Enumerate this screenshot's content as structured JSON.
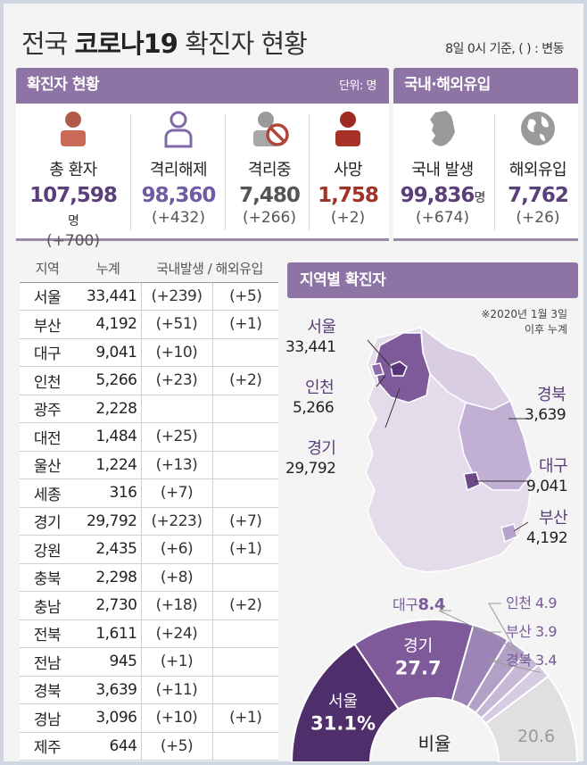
{
  "title_prefix": "전국",
  "title_bold": "코로나19",
  "title_suffix": "확진자 현황",
  "date_note": "8일 0시 기준, ( ) : 변동",
  "colors": {
    "accent": "#8e73a5",
    "dark_purple": "#5a3478",
    "death_red": "#a13228"
  },
  "confirmed_panel": {
    "title": "확진자 현황",
    "unit": "단위: 명",
    "stats": [
      {
        "label": "총 환자",
        "value": "107,598",
        "unit": "명",
        "change": "(+700)",
        "icon": "person-icon"
      },
      {
        "label": "격리해제",
        "value": "98,360",
        "change": "(+432)",
        "icon": "person-outline-icon"
      },
      {
        "label": "격리중",
        "value": "7,480",
        "change": "(+266)",
        "icon": "isolation-icon"
      },
      {
        "label": "사망",
        "value": "1,758",
        "change": "(+2)",
        "icon": "person-icon"
      }
    ]
  },
  "origin_panel": {
    "title": "국내·해외유입",
    "stats": [
      {
        "label": "국내 발생",
        "value": "99,836",
        "unit": "명",
        "change": "(+674)",
        "icon": "korea-map-icon"
      },
      {
        "label": "해외유입",
        "value": "7,762",
        "change": "(+26)",
        "icon": "globe-icon"
      }
    ]
  },
  "table": {
    "headers": [
      "지역",
      "누계",
      "국내발생 / 해외유입"
    ],
    "rows": [
      {
        "region": "서울",
        "total": "33,441",
        "domestic": "(+239)",
        "overseas": "(+5)"
      },
      {
        "region": "부산",
        "total": "4,192",
        "domestic": "(+51)",
        "overseas": "(+1)"
      },
      {
        "region": "대구",
        "total": "9,041",
        "domestic": "(+10)",
        "overseas": ""
      },
      {
        "region": "인천",
        "total": "5,266",
        "domestic": "(+23)",
        "overseas": "(+2)"
      },
      {
        "region": "광주",
        "total": "2,228",
        "domestic": "",
        "overseas": ""
      },
      {
        "region": "대전",
        "total": "1,484",
        "domestic": "(+25)",
        "overseas": ""
      },
      {
        "region": "울산",
        "total": "1,224",
        "domestic": "(+13)",
        "overseas": ""
      },
      {
        "region": "세종",
        "total": "316",
        "domestic": "(+7)",
        "overseas": ""
      },
      {
        "region": "경기",
        "total": "29,792",
        "domestic": "(+223)",
        "overseas": "(+7)"
      },
      {
        "region": "강원",
        "total": "2,435",
        "domestic": "(+6)",
        "overseas": "(+1)"
      },
      {
        "region": "충북",
        "total": "2,298",
        "domestic": "(+8)",
        "overseas": ""
      },
      {
        "region": "충남",
        "total": "2,730",
        "domestic": "(+18)",
        "overseas": "(+2)"
      },
      {
        "region": "전북",
        "total": "1,611",
        "domestic": "(+24)",
        "overseas": ""
      },
      {
        "region": "전남",
        "total": "945",
        "domestic": "(+1)",
        "overseas": ""
      },
      {
        "region": "경북",
        "total": "3,639",
        "domestic": "(+11)",
        "overseas": ""
      },
      {
        "region": "경남",
        "total": "3,096",
        "domestic": "(+10)",
        "overseas": "(+1)"
      },
      {
        "region": "제주",
        "total": "644",
        "domestic": "(+5)",
        "overseas": ""
      }
    ]
  },
  "map": {
    "title": "지역별 확진자",
    "note_line1": "※2020년 1월 3일",
    "note_line2": "이후 누계",
    "labels": [
      {
        "region": "서울",
        "value": "33,441"
      },
      {
        "region": "인천",
        "value": "5,266"
      },
      {
        "region": "경기",
        "value": "29,792"
      },
      {
        "region": "경북",
        "value": "3,639"
      },
      {
        "region": "대구",
        "value": "9,041"
      },
      {
        "region": "부산",
        "value": "4,192"
      }
    ]
  },
  "ratio": {
    "center_label": "비율",
    "slices": [
      {
        "label": "서울",
        "value": 31.1,
        "display": "31.1%",
        "color": "#4f2e6c"
      },
      {
        "label": "경기",
        "value": 27.7,
        "display": "27.7",
        "color": "#7e5a9a"
      },
      {
        "label": "대구",
        "value": 8.4,
        "display": "8.4",
        "color": "#9d84b6"
      },
      {
        "label": "인천",
        "value": 4.9,
        "display": "4.9",
        "color": "#b3a0c7"
      },
      {
        "label": "부산",
        "value": 3.9,
        "display": "3.9",
        "color": "#c6b8d6"
      },
      {
        "label": "경북",
        "value": 3.4,
        "display": "3.4",
        "color": "#d6cce2"
      },
      {
        "label": "",
        "value": 20.6,
        "display": "20.6",
        "color": "#e0e0e0"
      }
    ]
  }
}
